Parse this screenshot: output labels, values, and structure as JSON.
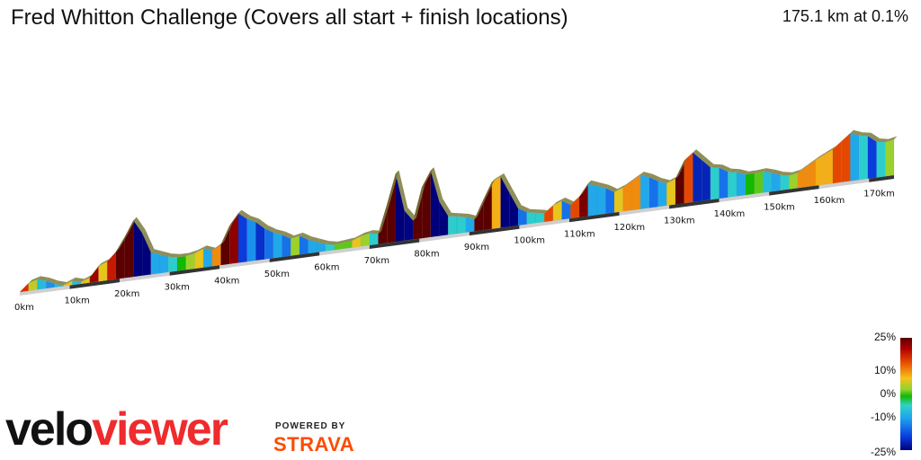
{
  "header": {
    "title": "Fred Whitton Challenge (Covers all start + finish locations)",
    "summary": "175.1 km at 0.1%"
  },
  "profile": {
    "distance_markers": [
      "0km",
      "10km",
      "20km",
      "30km",
      "40km",
      "50km",
      "60km",
      "70km",
      "80km",
      "90km",
      "100km",
      "110km",
      "120km",
      "130km",
      "140km",
      "150km",
      "160km",
      "170km"
    ],
    "elevation_profile": [
      0.0,
      0.09,
      0.12,
      0.09,
      0.04,
      0.01,
      0.05,
      0.02,
      0.06,
      0.18,
      0.22,
      0.32,
      0.48,
      0.66,
      0.5,
      0.26,
      0.22,
      0.18,
      0.16,
      0.16,
      0.18,
      0.22,
      0.18,
      0.24,
      0.45,
      0.58,
      0.5,
      0.45,
      0.36,
      0.3,
      0.26,
      0.2,
      0.22,
      0.16,
      0.12,
      0.08,
      0.06,
      0.07,
      0.08,
      0.12,
      0.14,
      0.12,
      0.45,
      0.8,
      0.35,
      0.22,
      0.6,
      0.78,
      0.4,
      0.22,
      0.2,
      0.18,
      0.14,
      0.35,
      0.55,
      0.6,
      0.4,
      0.2,
      0.14,
      0.12,
      0.1,
      0.18,
      0.22,
      0.16,
      0.24,
      0.38,
      0.34,
      0.3,
      0.24,
      0.28,
      0.34,
      0.4,
      0.36,
      0.3,
      0.26,
      0.3,
      0.5,
      0.58,
      0.48,
      0.38,
      0.36,
      0.3,
      0.28,
      0.24,
      0.24,
      0.25,
      0.22,
      0.18,
      0.16,
      0.18,
      0.24,
      0.3,
      0.35,
      0.4,
      0.48,
      0.56,
      0.52,
      0.5,
      0.42,
      0.4,
      0.42
    ]
  },
  "legend": {
    "ticks": [
      "25%",
      "10%",
      "0%",
      "-10%",
      "-25%"
    ]
  },
  "branding": {
    "logo_part1": "velo",
    "logo_part2": "viewer",
    "powered_by": "POWERED BY",
    "strava": "STRAVA"
  }
}
